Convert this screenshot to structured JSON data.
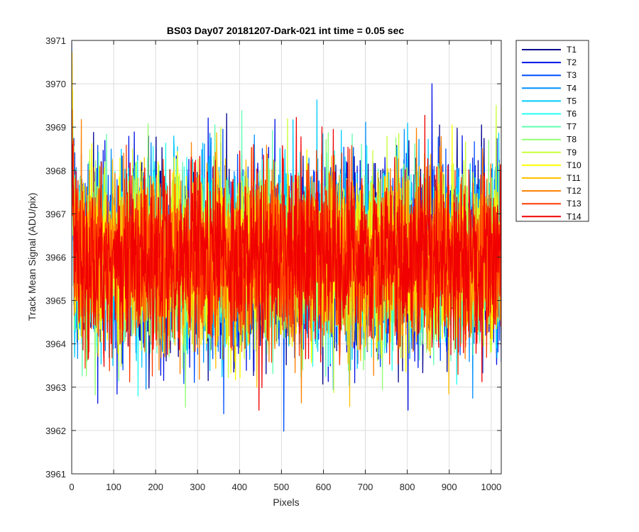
{
  "chart_data": {
    "type": "line",
    "title": "BS03 Day07 20181207-Dark-021 int time = 0.05 sec",
    "xlabel": "Pixels",
    "ylabel": "Track Mean Signal (ADU/pix)",
    "xlim": [
      0,
      1024
    ],
    "ylim": [
      3961,
      3971
    ],
    "xticks": [
      0,
      100,
      200,
      300,
      400,
      500,
      600,
      700,
      800,
      900,
      1000
    ],
    "yticks": [
      3961,
      3962,
      3963,
      3964,
      3965,
      3966,
      3967,
      3968,
      3969,
      3970,
      3971
    ],
    "grid": true,
    "legend_position": "outside-top-right",
    "noise": {
      "n_points": 1024,
      "mean": 3966.0,
      "sigma": 1.0
    },
    "series": [
      {
        "name": "T1",
        "color": "#00008f",
        "mean": 3966.0,
        "sigma": 1.05
      },
      {
        "name": "T2",
        "color": "#0012e6",
        "mean": 3966.0,
        "sigma": 1.05
      },
      {
        "name": "T3",
        "color": "#0050ff",
        "mean": 3966.0,
        "sigma": 1.0
      },
      {
        "name": "T4",
        "color": "#0090ff",
        "mean": 3966.0,
        "sigma": 1.0
      },
      {
        "name": "T5",
        "color": "#00ccff",
        "mean": 3966.0,
        "sigma": 1.0
      },
      {
        "name": "T6",
        "color": "#20fff0",
        "mean": 3966.0,
        "sigma": 0.95
      },
      {
        "name": "T7",
        "color": "#60ffb0",
        "mean": 3966.0,
        "sigma": 0.95
      },
      {
        "name": "T8",
        "color": "#90ff70",
        "mean": 3966.0,
        "sigma": 0.95
      },
      {
        "name": "T9",
        "color": "#c8ff38",
        "mean": 3966.0,
        "sigma": 0.95
      },
      {
        "name": "T10",
        "color": "#ffff00",
        "mean": 3966.0,
        "sigma": 0.95
      },
      {
        "name": "T11",
        "color": "#ffc000",
        "mean": 3966.0,
        "sigma": 0.95
      },
      {
        "name": "T12",
        "color": "#ff8000",
        "mean": 3966.0,
        "sigma": 0.95
      },
      {
        "name": "T13",
        "color": "#ff3c00",
        "mean": 3966.0,
        "sigma": 0.95
      },
      {
        "name": "T14",
        "color": "#f00000",
        "mean": 3966.0,
        "sigma": 1.0
      }
    ]
  }
}
